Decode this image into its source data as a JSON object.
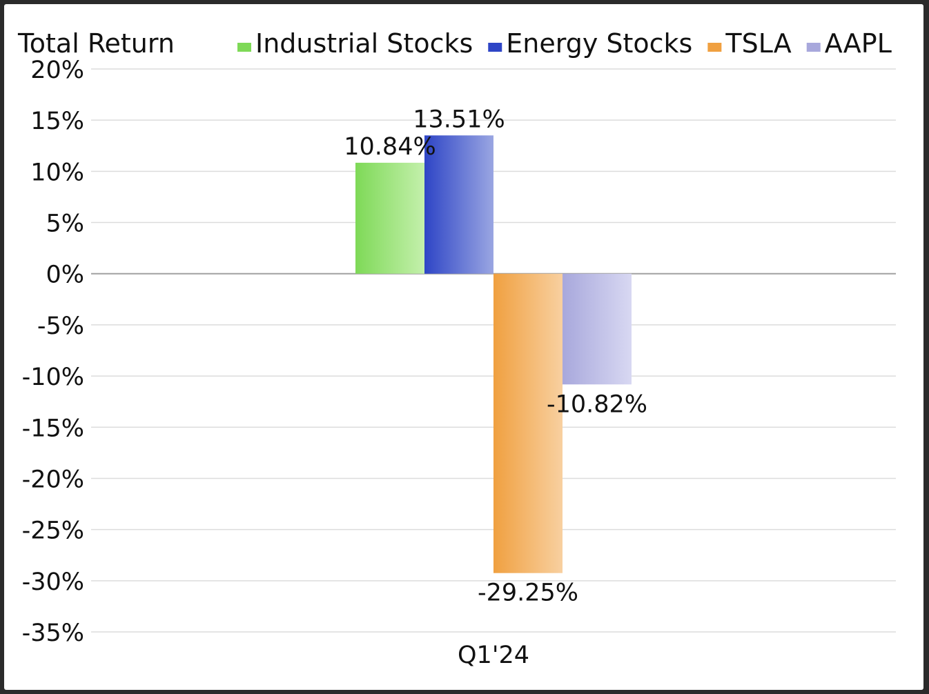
{
  "chart_data": {
    "type": "bar",
    "title": "Total Return",
    "categories": [
      "Q1'24"
    ],
    "series": [
      {
        "name": "Industrial Stocks",
        "values": [
          10.84
        ],
        "label": "10.84%",
        "color": "#7ed957",
        "color_light": "#c4f0ac"
      },
      {
        "name": "Energy Stocks",
        "values": [
          13.51
        ],
        "label": "13.51%",
        "color": "#2e45c6",
        "color_light": "#9aa6e2"
      },
      {
        "name": "TSLA",
        "values": [
          -29.25
        ],
        "label": "-29.25%",
        "color": "#f0a040",
        "color_light": "#f8d0a0"
      },
      {
        "name": "AAPL",
        "values": [
          -10.82
        ],
        "label": "-10.82%",
        "color": "#a8a8dc",
        "color_light": "#d8d8f2"
      }
    ],
    "ylim": [
      -35,
      20
    ],
    "yticks": [
      20,
      15,
      10,
      5,
      0,
      -5,
      -10,
      -15,
      -20,
      -25,
      -30,
      -35
    ],
    "ytick_labels": [
      "20%",
      "15%",
      "10%",
      "5%",
      "0%",
      "-5%",
      "-10%",
      "-15%",
      "-20%",
      "-25%",
      "-30%",
      "-35%"
    ],
    "legend_position": "top",
    "grid": true,
    "xlabel": "",
    "ylabel": ""
  }
}
